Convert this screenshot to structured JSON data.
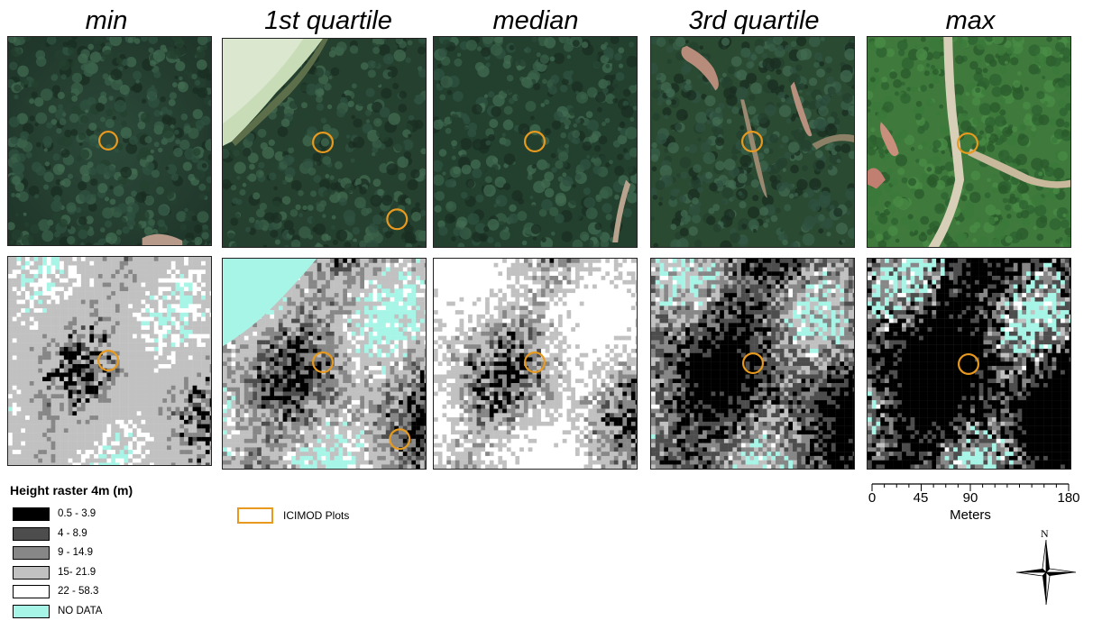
{
  "columns": [
    {
      "title": "min"
    },
    {
      "title": "1st quartile"
    },
    {
      "title": "median"
    },
    {
      "title": "3rd quartile"
    },
    {
      "title": "max"
    }
  ],
  "legend": {
    "title": "Height raster 4m (m)",
    "classes": [
      {
        "label": "0.5 - 3.9",
        "color": "#000000"
      },
      {
        "label": "4 - 8.9",
        "color": "#4d4d4d"
      },
      {
        "label": "9 - 14.9",
        "color": "#878787"
      },
      {
        "label": "15- 21.9",
        "color": "#c1c1c1"
      },
      {
        "label": "22 - 58.3",
        "color": "#ffffff"
      },
      {
        "label": "NO DATA",
        "color": "#a6f5e6"
      }
    ]
  },
  "plots_legend": {
    "label": "ICIMOD Plots",
    "color": "#e89a1e"
  },
  "scale": {
    "ticks": [
      "0",
      "45",
      "90",
      "180"
    ],
    "unit": "Meters"
  },
  "north": {
    "label": "N"
  }
}
